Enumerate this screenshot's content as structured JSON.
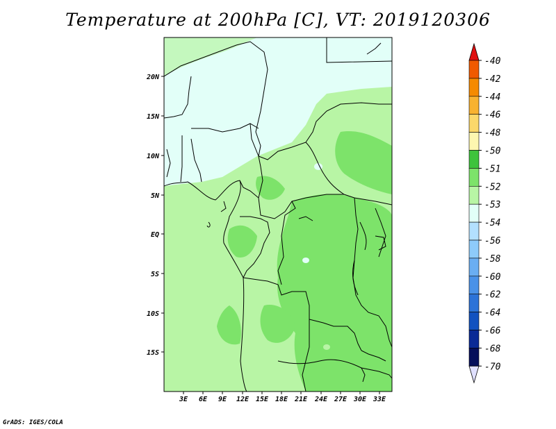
{
  "title": "Temperature at 200hPa [C], VT: 2019120306",
  "credit": "GrADS: IGES/COLA",
  "lat_labels": [
    "20N",
    "15N",
    "10N",
    "5N",
    "EQ",
    "5S",
    "10S",
    "15S"
  ],
  "lon_labels": [
    "3E",
    "6E",
    "9E",
    "12E",
    "15E",
    "18E",
    "21E",
    "24E",
    "27E",
    "30E",
    "33E"
  ],
  "colorbar": {
    "labels": [
      "-40",
      "-42",
      "-44",
      "-46",
      "-48",
      "-50",
      "-51",
      "-52",
      "-53",
      "-54",
      "-56",
      "-58",
      "-60",
      "-62",
      "-64",
      "-66",
      "-68",
      "-70"
    ],
    "colors": [
      "#e82000",
      "#f05a00",
      "#f58a00",
      "#f8b230",
      "#fbd86a",
      "#fdf7b0",
      "#3ec33c",
      "#7de36a",
      "#b8f5a5",
      "#e2fff8",
      "#b3e0ff",
      "#8ecbfa",
      "#6aaef2",
      "#4a92e8",
      "#2c73d8",
      "#1252c0",
      "#0a2a96",
      "#050f5a"
    ],
    "top_arrow_color": "#e01010",
    "bottom_arrow_color": "#e0e0ff"
  }
}
